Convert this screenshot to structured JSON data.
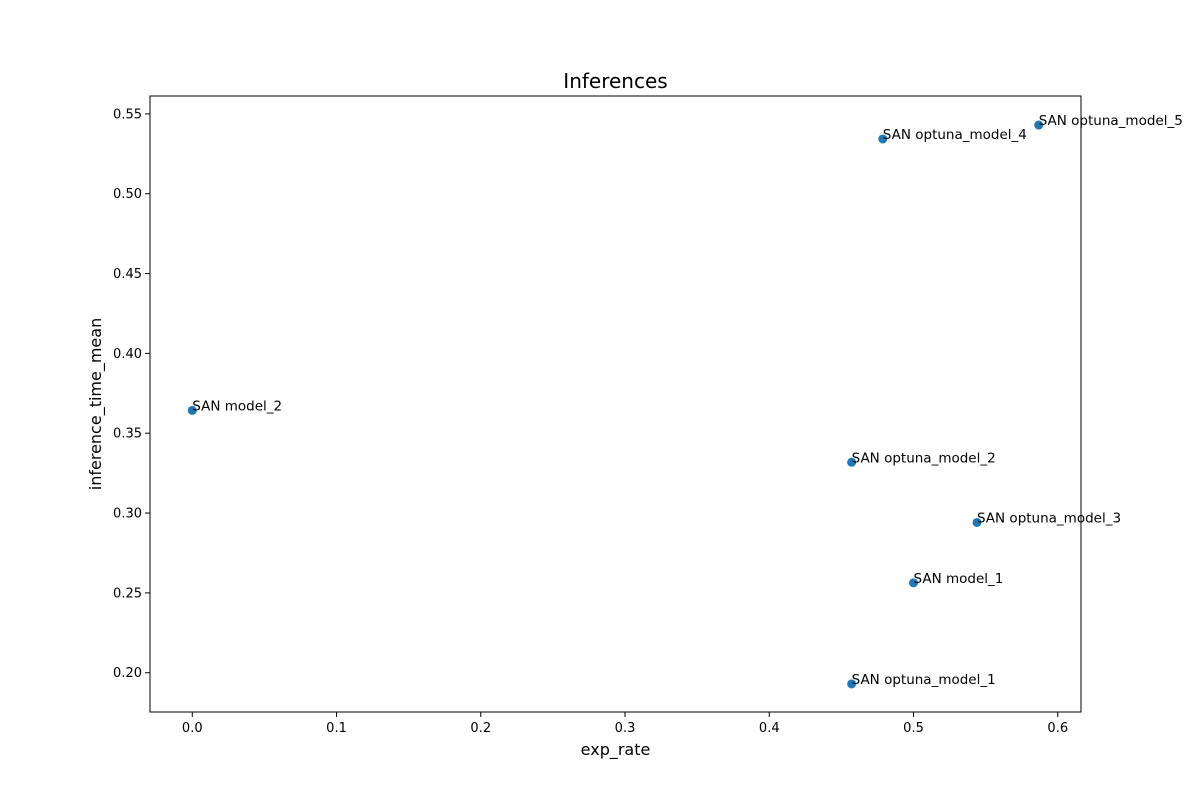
{
  "chart_data": {
    "type": "scatter",
    "title": "Inferences",
    "xlabel": "exp_rate",
    "ylabel": "inference_time_mean",
    "xlim": [
      -0.0293,
      0.6161
    ],
    "ylim": [
      0.1754,
      0.5612
    ],
    "xticks": [
      0.0,
      0.1,
      0.2,
      0.3,
      0.4,
      0.5,
      0.6
    ],
    "xtick_labels": [
      "0.0",
      "0.1",
      "0.2",
      "0.3",
      "0.4",
      "0.5",
      "0.6"
    ],
    "yticks": [
      0.2,
      0.25,
      0.3,
      0.35,
      0.4,
      0.45,
      0.5,
      0.55
    ],
    "ytick_labels": [
      "0.20",
      "0.25",
      "0.30",
      "0.35",
      "0.40",
      "0.45",
      "0.50",
      "0.55"
    ],
    "grid": false,
    "marker_color": "#1f77b4",
    "points": [
      {
        "label": "SAN model_2",
        "x": 0.0,
        "y": 0.3643
      },
      {
        "label": "SAN optuna_model_2",
        "x": 0.4571,
        "y": 0.3318
      },
      {
        "label": "SAN optuna_model_3",
        "x": 0.544,
        "y": 0.2941
      },
      {
        "label": "SAN model_1",
        "x": 0.5,
        "y": 0.2563
      },
      {
        "label": "SAN optuna_model_1",
        "x": 0.4571,
        "y": 0.193
      },
      {
        "label": "SAN optuna_model_4",
        "x": 0.4787,
        "y": 0.5343
      },
      {
        "label": "SAN optuna_model_5",
        "x": 0.5868,
        "y": 0.543
      }
    ]
  }
}
